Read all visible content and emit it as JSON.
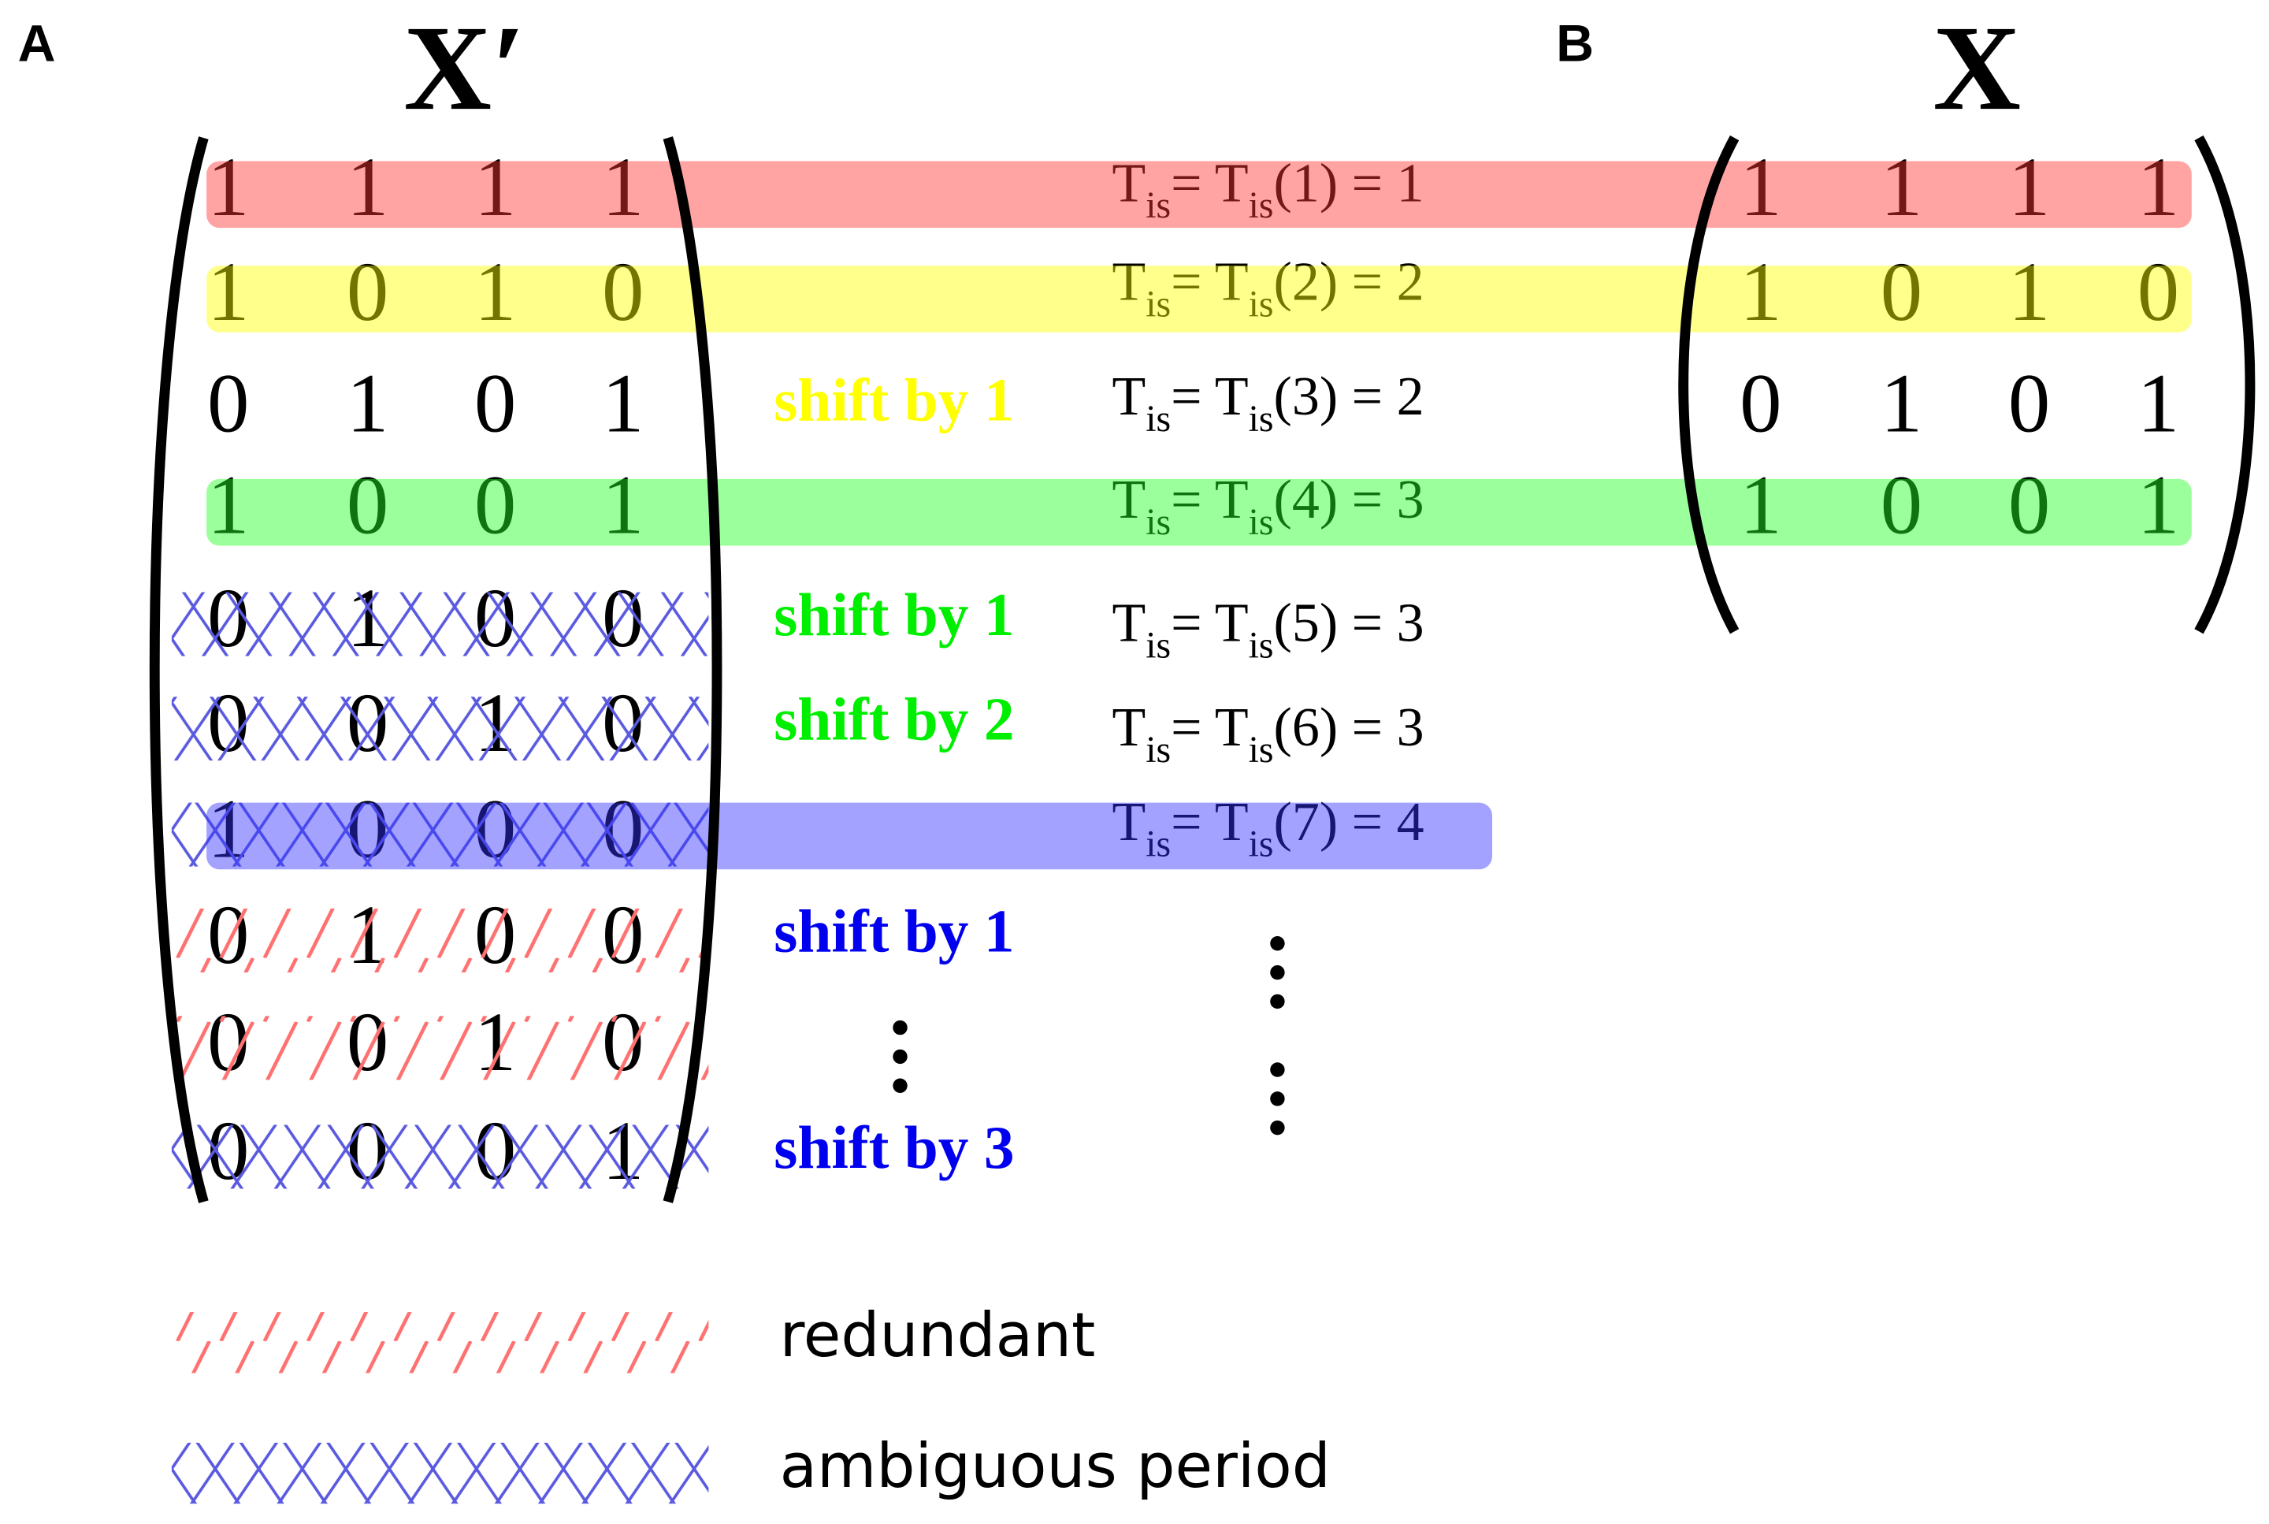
{
  "panel_a": {
    "label": "A",
    "title": "X′",
    "rows": [
      {
        "cells": [
          1,
          1,
          1,
          1
        ],
        "highlight": "#ff3333"
      },
      {
        "cells": [
          1,
          0,
          1,
          0
        ],
        "highlight": "#ffff00"
      },
      {
        "cells": [
          0,
          1,
          0,
          1
        ]
      },
      {
        "cells": [
          1,
          0,
          0,
          1
        ],
        "highlight": "#22ff22"
      },
      {
        "cells": [
          0,
          1,
          0,
          0
        ],
        "hatch": "cross"
      },
      {
        "cells": [
          0,
          0,
          1,
          0
        ],
        "hatch": "cross"
      },
      {
        "cells": [
          1,
          0,
          0,
          0
        ],
        "hatch": "cross",
        "highlight": "#3333ff"
      },
      {
        "cells": [
          0,
          1,
          0,
          0
        ],
        "hatch": "slash"
      },
      {
        "cells": [
          0,
          0,
          1,
          0
        ],
        "hatch": "slash"
      },
      {
        "cells": [
          0,
          0,
          0,
          1
        ],
        "hatch": "cross"
      }
    ]
  },
  "shift_labels": [
    {
      "text": "shift by 1",
      "color": "#ffff00"
    },
    {
      "text": "shift by 1",
      "color": "#00ee00"
    },
    {
      "text": "shift by 2",
      "color": "#00ee00"
    },
    {
      "text": "shift by 1",
      "color": "#0000ee"
    },
    {
      "text": "shift by 3",
      "color": "#0000ee"
    }
  ],
  "t_labels": [
    [
      "T",
      "is",
      "= T",
      "is",
      "(1) = 1"
    ],
    [
      "T",
      "is",
      "= T",
      "is",
      "(2) = 2"
    ],
    [
      "T",
      "is",
      "= T",
      "is",
      "(3) = 2"
    ],
    [
      "T",
      "is",
      "= T",
      "is",
      "(4) = 3"
    ],
    [
      "T",
      "is",
      "= T",
      "is",
      "(5) = 3"
    ],
    [
      "T",
      "is",
      "= T",
      "is",
      "(6) = 3"
    ],
    [
      "T",
      "is",
      "= T",
      "is",
      "(7) = 4"
    ]
  ],
  "panel_b": {
    "label": "B",
    "title": "X",
    "rows": [
      [
        1,
        1,
        1,
        1
      ],
      [
        1,
        0,
        1,
        0
      ],
      [
        0,
        1,
        0,
        1
      ],
      [
        1,
        0,
        0,
        1
      ]
    ]
  },
  "legend": [
    {
      "text": "redundant",
      "hatch": "slash"
    },
    {
      "text": "ambiguous period",
      "hatch": "cross"
    }
  ]
}
